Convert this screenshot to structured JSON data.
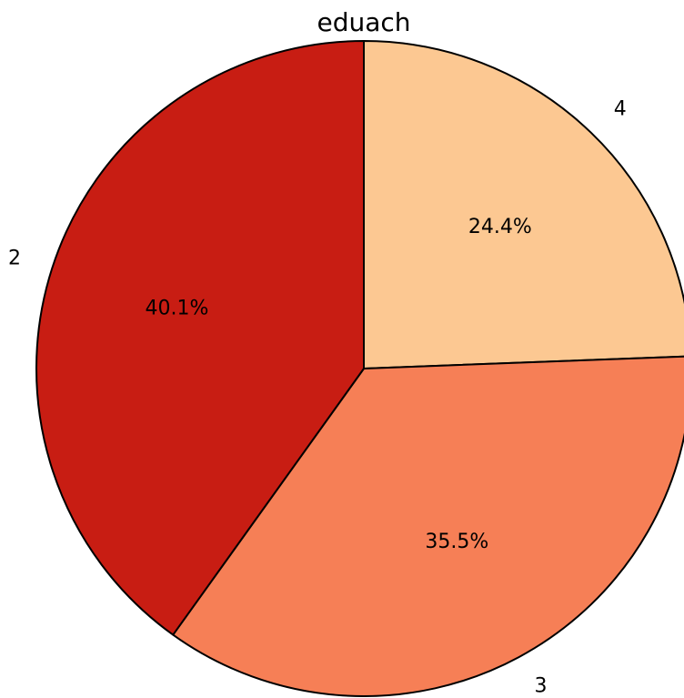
{
  "chart_data": {
    "type": "pie",
    "title": "eduach",
    "categories": [
      "4",
      "3",
      "2"
    ],
    "values": [
      24.4,
      35.5,
      40.1
    ],
    "percent_labels": [
      "24.4%",
      "35.5%",
      "40.1%"
    ],
    "colors": [
      "#fcc892",
      "#f67f56",
      "#c81d13"
    ],
    "edge_color": "#000000",
    "start_angle_deg": 90,
    "direction": "clockwise",
    "legend": "none"
  }
}
